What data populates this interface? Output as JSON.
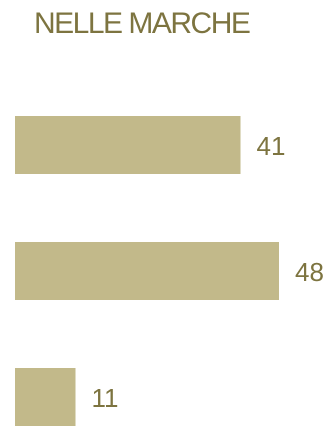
{
  "chart_data": {
    "type": "bar",
    "orientation": "horizontal",
    "title": "NELLE MARCHE",
    "categories": [
      "",
      "",
      ""
    ],
    "values": [
      41,
      48,
      11
    ],
    "data_labels": [
      "41",
      "48",
      "11"
    ],
    "xlabel": "",
    "ylabel": "",
    "xlim": [
      0,
      48
    ],
    "grid": false,
    "legend": "none"
  },
  "colors": {
    "bar": "#c2b98a",
    "text": "#7d7440"
  }
}
